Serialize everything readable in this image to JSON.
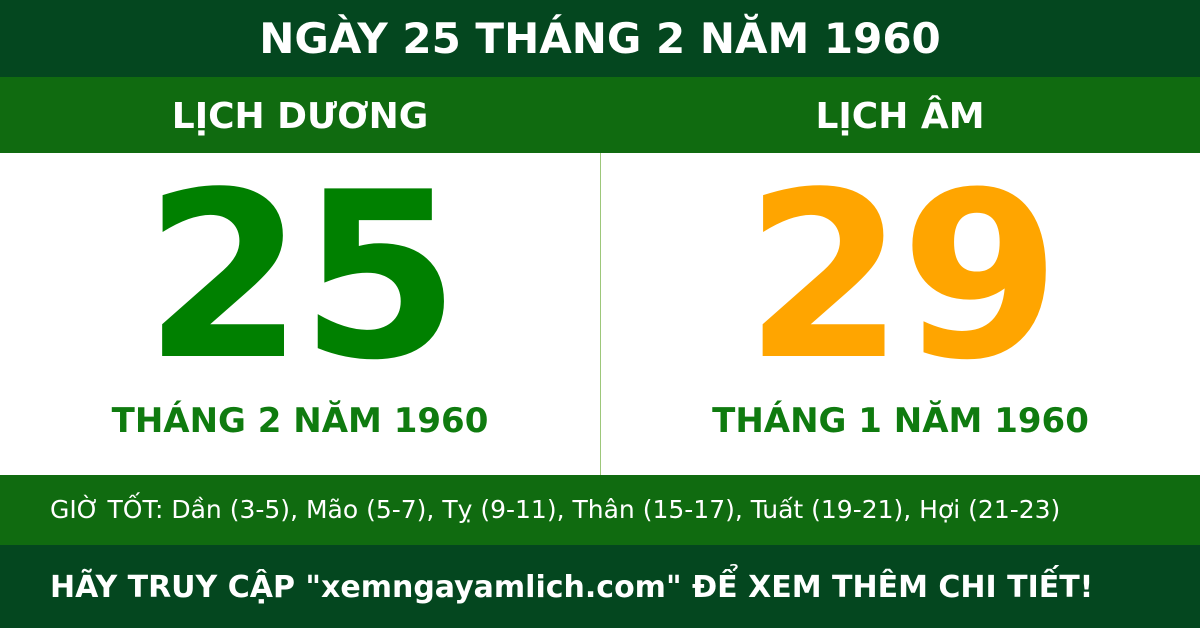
{
  "title": "NGÀY 25 THÁNG 2 NĂM 1960",
  "solar": {
    "label": "LỊCH DƯƠNG",
    "day": "25",
    "month_year": "THÁNG 2 NĂM 1960",
    "color": "#008000"
  },
  "lunar": {
    "label": "LỊCH ÂM",
    "day": "29",
    "month_year": "THÁNG 1 NĂM 1960",
    "color": "#ffa500"
  },
  "good_hours": "GIỜ TỐT: Dần (3-5), Mão (5-7), Tỵ (9-11), Thân (15-17), Tuất (19-21), Hợi (21-23)",
  "footer": "HÃY TRUY CẬP \"xemngayamlich.com\" ĐỂ XEM THÊM CHI TIẾT!"
}
